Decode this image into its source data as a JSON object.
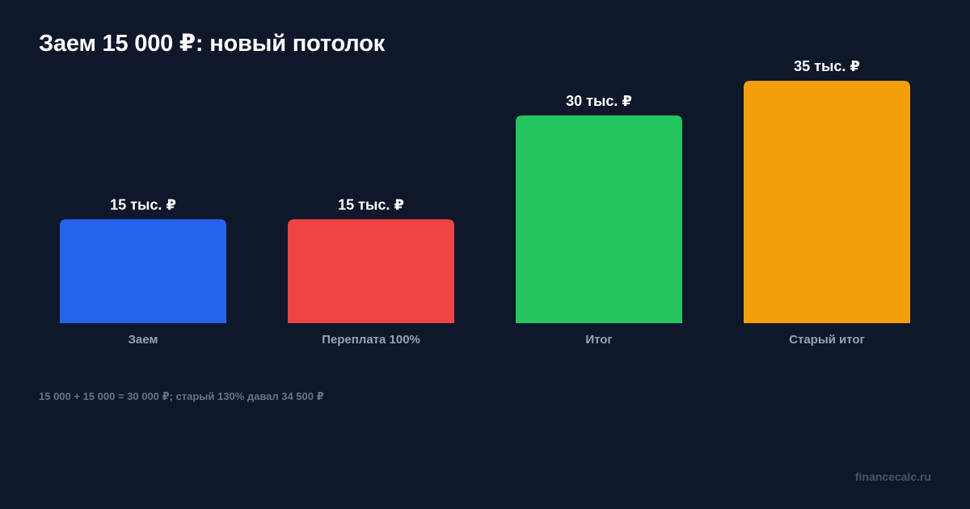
{
  "header": {
    "title": "Заем 15 000 ₽: новый потолок"
  },
  "chart_data": {
    "type": "bar",
    "title": "Заем 15 000 ₽: новый потолок",
    "xlabel": "",
    "ylabel": "",
    "ylim": [
      0,
      35
    ],
    "grid": false,
    "legend": "none",
    "categories": [
      "Заем",
      "Переплата 100%",
      "Итог",
      "Старый итог"
    ],
    "values": [
      15,
      15,
      30,
      35
    ],
    "value_labels": [
      "15 тыс. ₽",
      "15 тыс. ₽",
      "30 тыс. ₽",
      "35 тыс. ₽"
    ],
    "colors": [
      "#2563eb",
      "#ef4444",
      "#22c55e",
      "#f59e0b"
    ]
  },
  "footer": {
    "note": "15 000 + 15 000 = 30 000 ₽; старый 130% давал 34 500 ₽",
    "source": "financecalc.ru"
  },
  "colors": {
    "background": "#0f172a",
    "title": "#ffffff",
    "category_label": "#94a3b8",
    "footnote": "#64748b",
    "source": "#475569"
  }
}
